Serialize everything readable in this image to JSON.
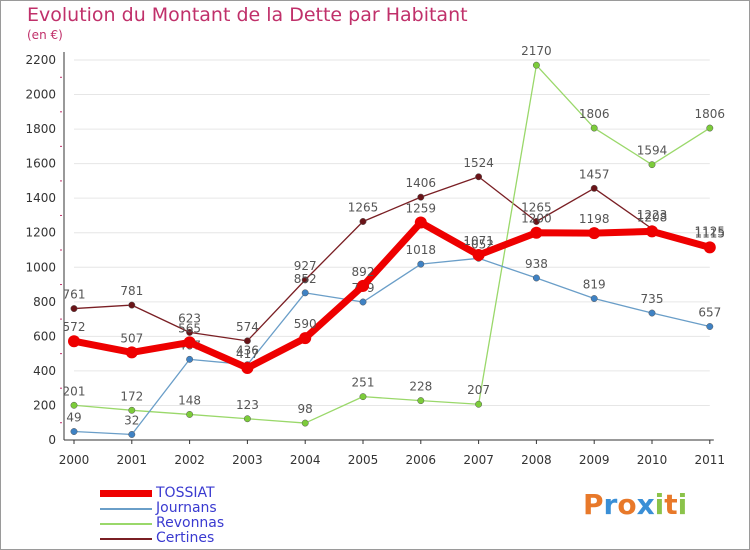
{
  "title": "Evolution du Montant de la Dette par Habitant",
  "unit": "(en €)",
  "logo": {
    "letters": [
      "P",
      "r",
      "o",
      "x",
      "i",
      "t",
      "i"
    ],
    "colors": [
      "#e8792a",
      "#3a8fd6",
      "#e8792a",
      "#3a8fd6",
      "#8bc34a",
      "#e8792a",
      "#8bc34a"
    ]
  },
  "chart_data": {
    "type": "line",
    "categories": [
      "2000",
      "2001",
      "2002",
      "2003",
      "2004",
      "2005",
      "2006",
      "2007",
      "2008",
      "2009",
      "2010",
      "2011"
    ],
    "ylim": [
      0,
      2200
    ],
    "yticks": [
      0,
      200,
      400,
      600,
      800,
      1000,
      1200,
      1400,
      1600,
      1800,
      2000,
      2200
    ],
    "grid": "horizontal",
    "legend_position": "bottom-left",
    "series": [
      {
        "name": "Certines",
        "color": "#7a1f24",
        "dot": "#6a1418",
        "width": 1.3,
        "values": [
          761,
          781,
          623,
          574,
          927,
          1265,
          1406,
          1524,
          1265,
          1457,
          1223,
          1125
        ]
      },
      {
        "name": "Revonnas",
        "color": "#9ad86a",
        "dot": "#7ccc3a",
        "width": 1.3,
        "values": [
          201,
          172,
          148,
          123,
          98,
          251,
          228,
          207,
          2170,
          1806,
          1594,
          1806
        ]
      },
      {
        "name": "Journans",
        "color": "#6a9ec8",
        "dot": "#3f82c4",
        "width": 1.3,
        "values": [
          49,
          32,
          467,
          436,
          852,
          799,
          1018,
          1052,
          938,
          819,
          735,
          657
        ]
      },
      {
        "name": "TOSSIAT",
        "color": "#ee0000",
        "dot": "#ee0000",
        "width": 7,
        "values": [
          572,
          507,
          565,
          417,
          590,
          892,
          1259,
          1071,
          1200,
          1198,
          1208,
          1115
        ]
      }
    ],
    "legend_order": [
      "TOSSIAT",
      "Journans",
      "Revonnas",
      "Certines"
    ]
  }
}
